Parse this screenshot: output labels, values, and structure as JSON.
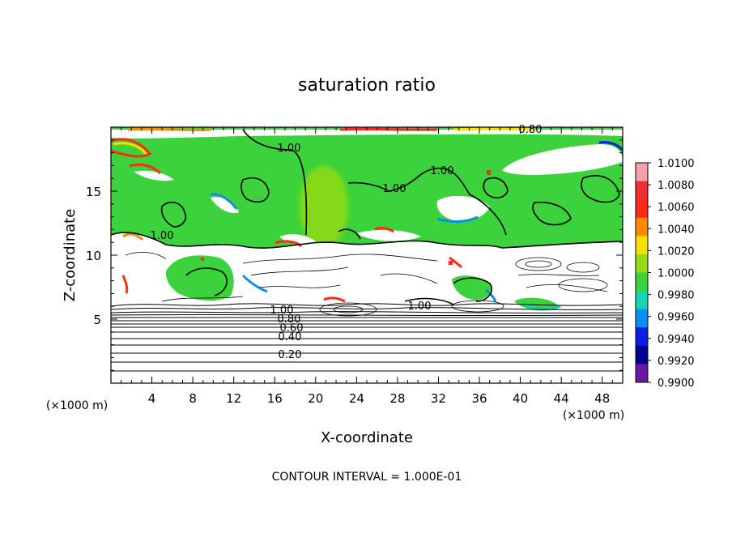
{
  "chart_data": {
    "type": "heatmap",
    "title": "saturation ratio",
    "xlabel": "X-coordinate",
    "ylabel": "Z-coordinate",
    "x_unit": "(×1000 m)",
    "z_unit": "(×1000 m)",
    "xlim": [
      0,
      50
    ],
    "ylim": [
      0,
      20
    ],
    "x_ticks": [
      4,
      8,
      12,
      16,
      20,
      24,
      28,
      32,
      36,
      40,
      44,
      48
    ],
    "y_ticks": [
      5,
      10,
      15
    ],
    "colorbar": {
      "values": [
        "1.0100",
        "1.0080",
        "1.0060",
        "1.0040",
        "1.0020",
        "1.0000",
        "0.9980",
        "0.9960",
        "0.9940",
        "0.9920",
        "0.9900"
      ],
      "colors": [
        "#f4a0a8",
        "#f03030",
        "#ff2a18",
        "#ff8c00",
        "#f5e000",
        "#96dc10",
        "#3cd23c",
        "#18d2b4",
        "#0a8cf0",
        "#0a1ee6",
        "#000090",
        "#6a1aa0"
      ]
    },
    "contour_interval_text": "CONTOUR INTERVAL = 1.000E-01",
    "contour_levels": [
      0.1,
      0.2,
      0.3,
      0.4,
      0.5,
      0.6,
      0.7,
      0.8,
      0.9,
      1.0
    ],
    "contour_labels": [
      "1.00",
      "1.00",
      "1.00",
      "1.00",
      "1.00",
      "0.80",
      "1.00",
      "0.80",
      "0.60",
      "0.40",
      "0.20"
    ]
  }
}
